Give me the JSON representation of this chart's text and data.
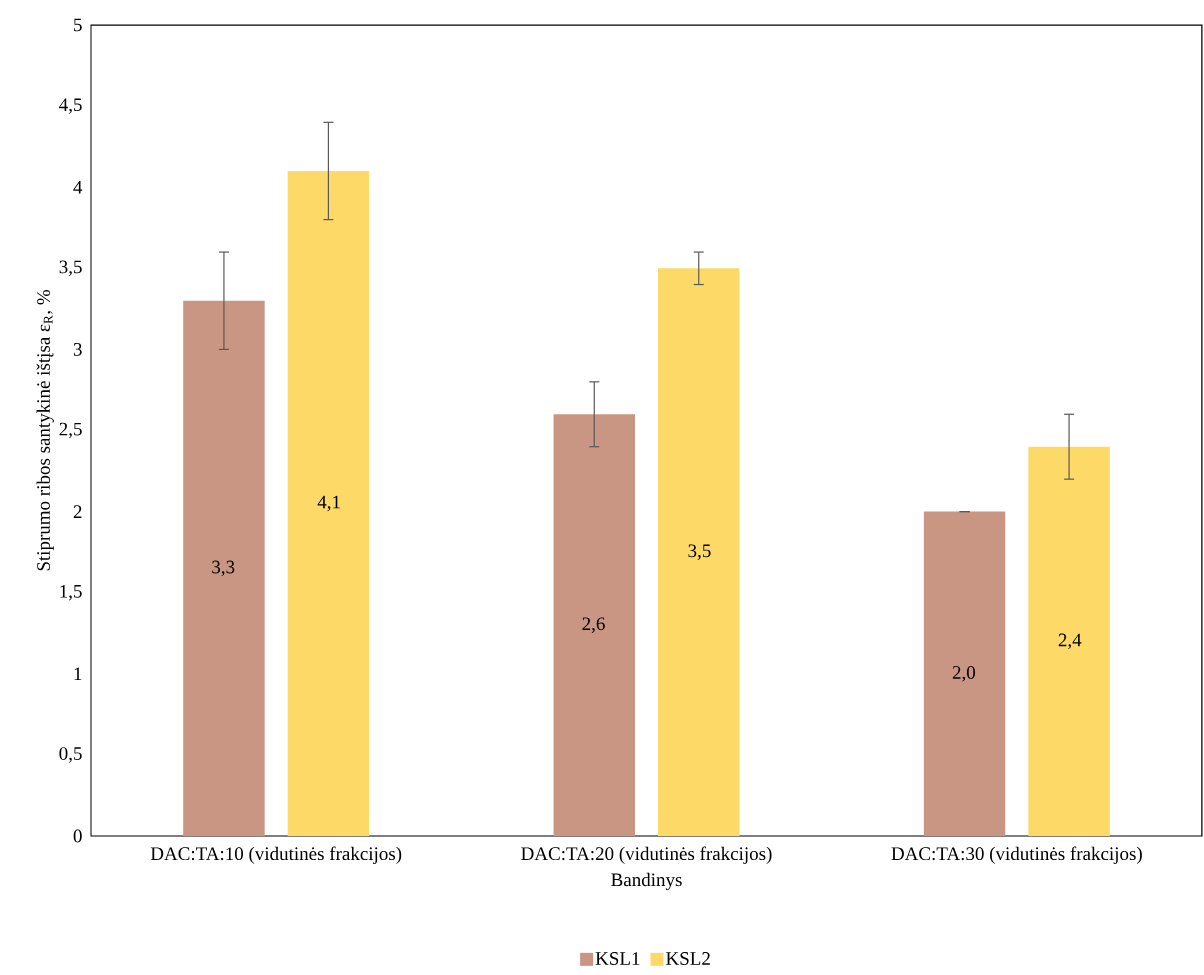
{
  "chart_data": {
    "type": "bar",
    "xlabel": "Bandinys",
    "ylabel": "Stiprumo ribos santykinė ištįsa ε$_{R}$, %",
    "categories": [
      "DAC:TA:10 (vidutinės frakcijos)",
      "DAC:TA:20 (vidutinės frakcijos)",
      "DAC:TA:30 (vidutinės frakcijos)"
    ],
    "series": [
      {
        "name": "KSL1",
        "color": "#c89682",
        "values": [
          3.3,
          2.6,
          2.0
        ],
        "errors": [
          0.3,
          0.2,
          0
        ],
        "value_labels": [
          "3,3",
          "2,6",
          "2,0"
        ]
      },
      {
        "name": "KSL2",
        "color": "#fdd968",
        "values": [
          4.1,
          3.5,
          2.4
        ],
        "errors": [
          0.3,
          0.1,
          0.2
        ],
        "value_labels": [
          "4,1",
          "3,5",
          "2,4"
        ]
      }
    ],
    "ylim": [
      0,
      5
    ],
    "yticks": [
      0,
      {
        "value": 0.5,
        "label": "0,5"
      },
      1,
      {
        "value": 1.5,
        "label": "1,5"
      },
      2,
      {
        "value": 2.5,
        "label": "2,5"
      },
      3,
      {
        "value": 3.5,
        "label": "3,5"
      },
      4,
      {
        "value": 4.5,
        "label": "4,5"
      },
      5
    ],
    "grid": false,
    "legend": "bottom"
  }
}
